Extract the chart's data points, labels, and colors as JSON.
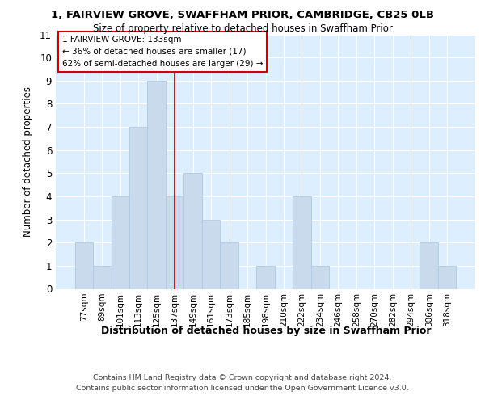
{
  "title1": "1, FAIRVIEW GROVE, SWAFFHAM PRIOR, CAMBRIDGE, CB25 0LB",
  "title2": "Size of property relative to detached houses in Swaffham Prior",
  "xlabel": "Distribution of detached houses by size in Swaffham Prior",
  "ylabel": "Number of detached properties",
  "footnote1": "Contains HM Land Registry data © Crown copyright and database right 2024.",
  "footnote2": "Contains public sector information licensed under the Open Government Licence v3.0.",
  "annotation_line1": "1 FAIRVIEW GROVE: 133sqm",
  "annotation_line2": "← 36% of detached houses are smaller (17)",
  "annotation_line3": "62% of semi-detached houses are larger (29) →",
  "bar_color": "#c8daeb",
  "bar_edge_color": "#b0c8de",
  "marker_color": "#cc0000",
  "fig_bg_color": "#ffffff",
  "plot_bg_color": "#ddeeff",
  "grid_color": "#ffffff",
  "categories": [
    "77sqm",
    "89sqm",
    "101sqm",
    "113sqm",
    "125sqm",
    "137sqm",
    "149sqm",
    "161sqm",
    "173sqm",
    "185sqm",
    "198sqm",
    "210sqm",
    "222sqm",
    "234sqm",
    "246sqm",
    "258sqm",
    "270sqm",
    "282sqm",
    "294sqm",
    "306sqm",
    "318sqm"
  ],
  "values": [
    2,
    1,
    4,
    7,
    9,
    4,
    5,
    3,
    2,
    0,
    1,
    0,
    4,
    1,
    0,
    0,
    0,
    0,
    0,
    2,
    1
  ],
  "marker_index": 5,
  "ylim": [
    0,
    11
  ],
  "yticks": [
    0,
    1,
    2,
    3,
    4,
    5,
    6,
    7,
    8,
    9,
    10,
    11
  ]
}
